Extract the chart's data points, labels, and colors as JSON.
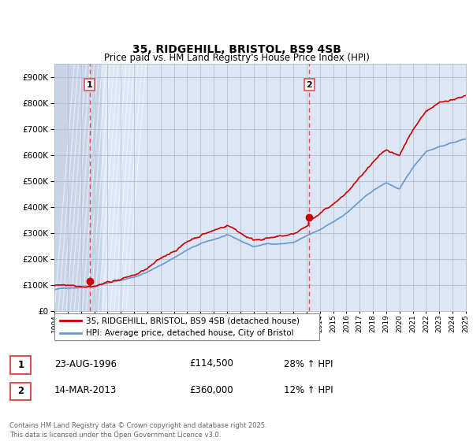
{
  "title": "35, RIDGEHILL, BRISTOL, BS9 4SB",
  "subtitle": "Price paid vs. HM Land Registry's House Price Index (HPI)",
  "ylim": [
    0,
    950000
  ],
  "yticks": [
    0,
    100000,
    200000,
    300000,
    400000,
    500000,
    600000,
    700000,
    800000,
    900000
  ],
  "xmin": 1994,
  "xmax": 2025,
  "t1_year": 1996.65,
  "t1_price": 114500,
  "t2_year": 2013.2,
  "t2_price": 360000,
  "legend_line1": "35, RIDGEHILL, BRISTOL, BS9 4SB (detached house)",
  "legend_line2": "HPI: Average price, detached house, City of Bristol",
  "table_row1": [
    "1",
    "23-AUG-1996",
    "£114,500",
    "28% ↑ HPI"
  ],
  "table_row2": [
    "2",
    "14-MAR-2013",
    "£360,000",
    "12% ↑ HPI"
  ],
  "footnote": "Contains HM Land Registry data © Crown copyright and database right 2025.\nThis data is licensed under the Open Government Licence v3.0.",
  "red_color": "#cc0000",
  "blue_color": "#6699cc",
  "chart_bg": "#dce6f5",
  "hatch_bg": "#c8d4e8",
  "grid_color": "#b0bcd0",
  "dash_color": "#e05050"
}
